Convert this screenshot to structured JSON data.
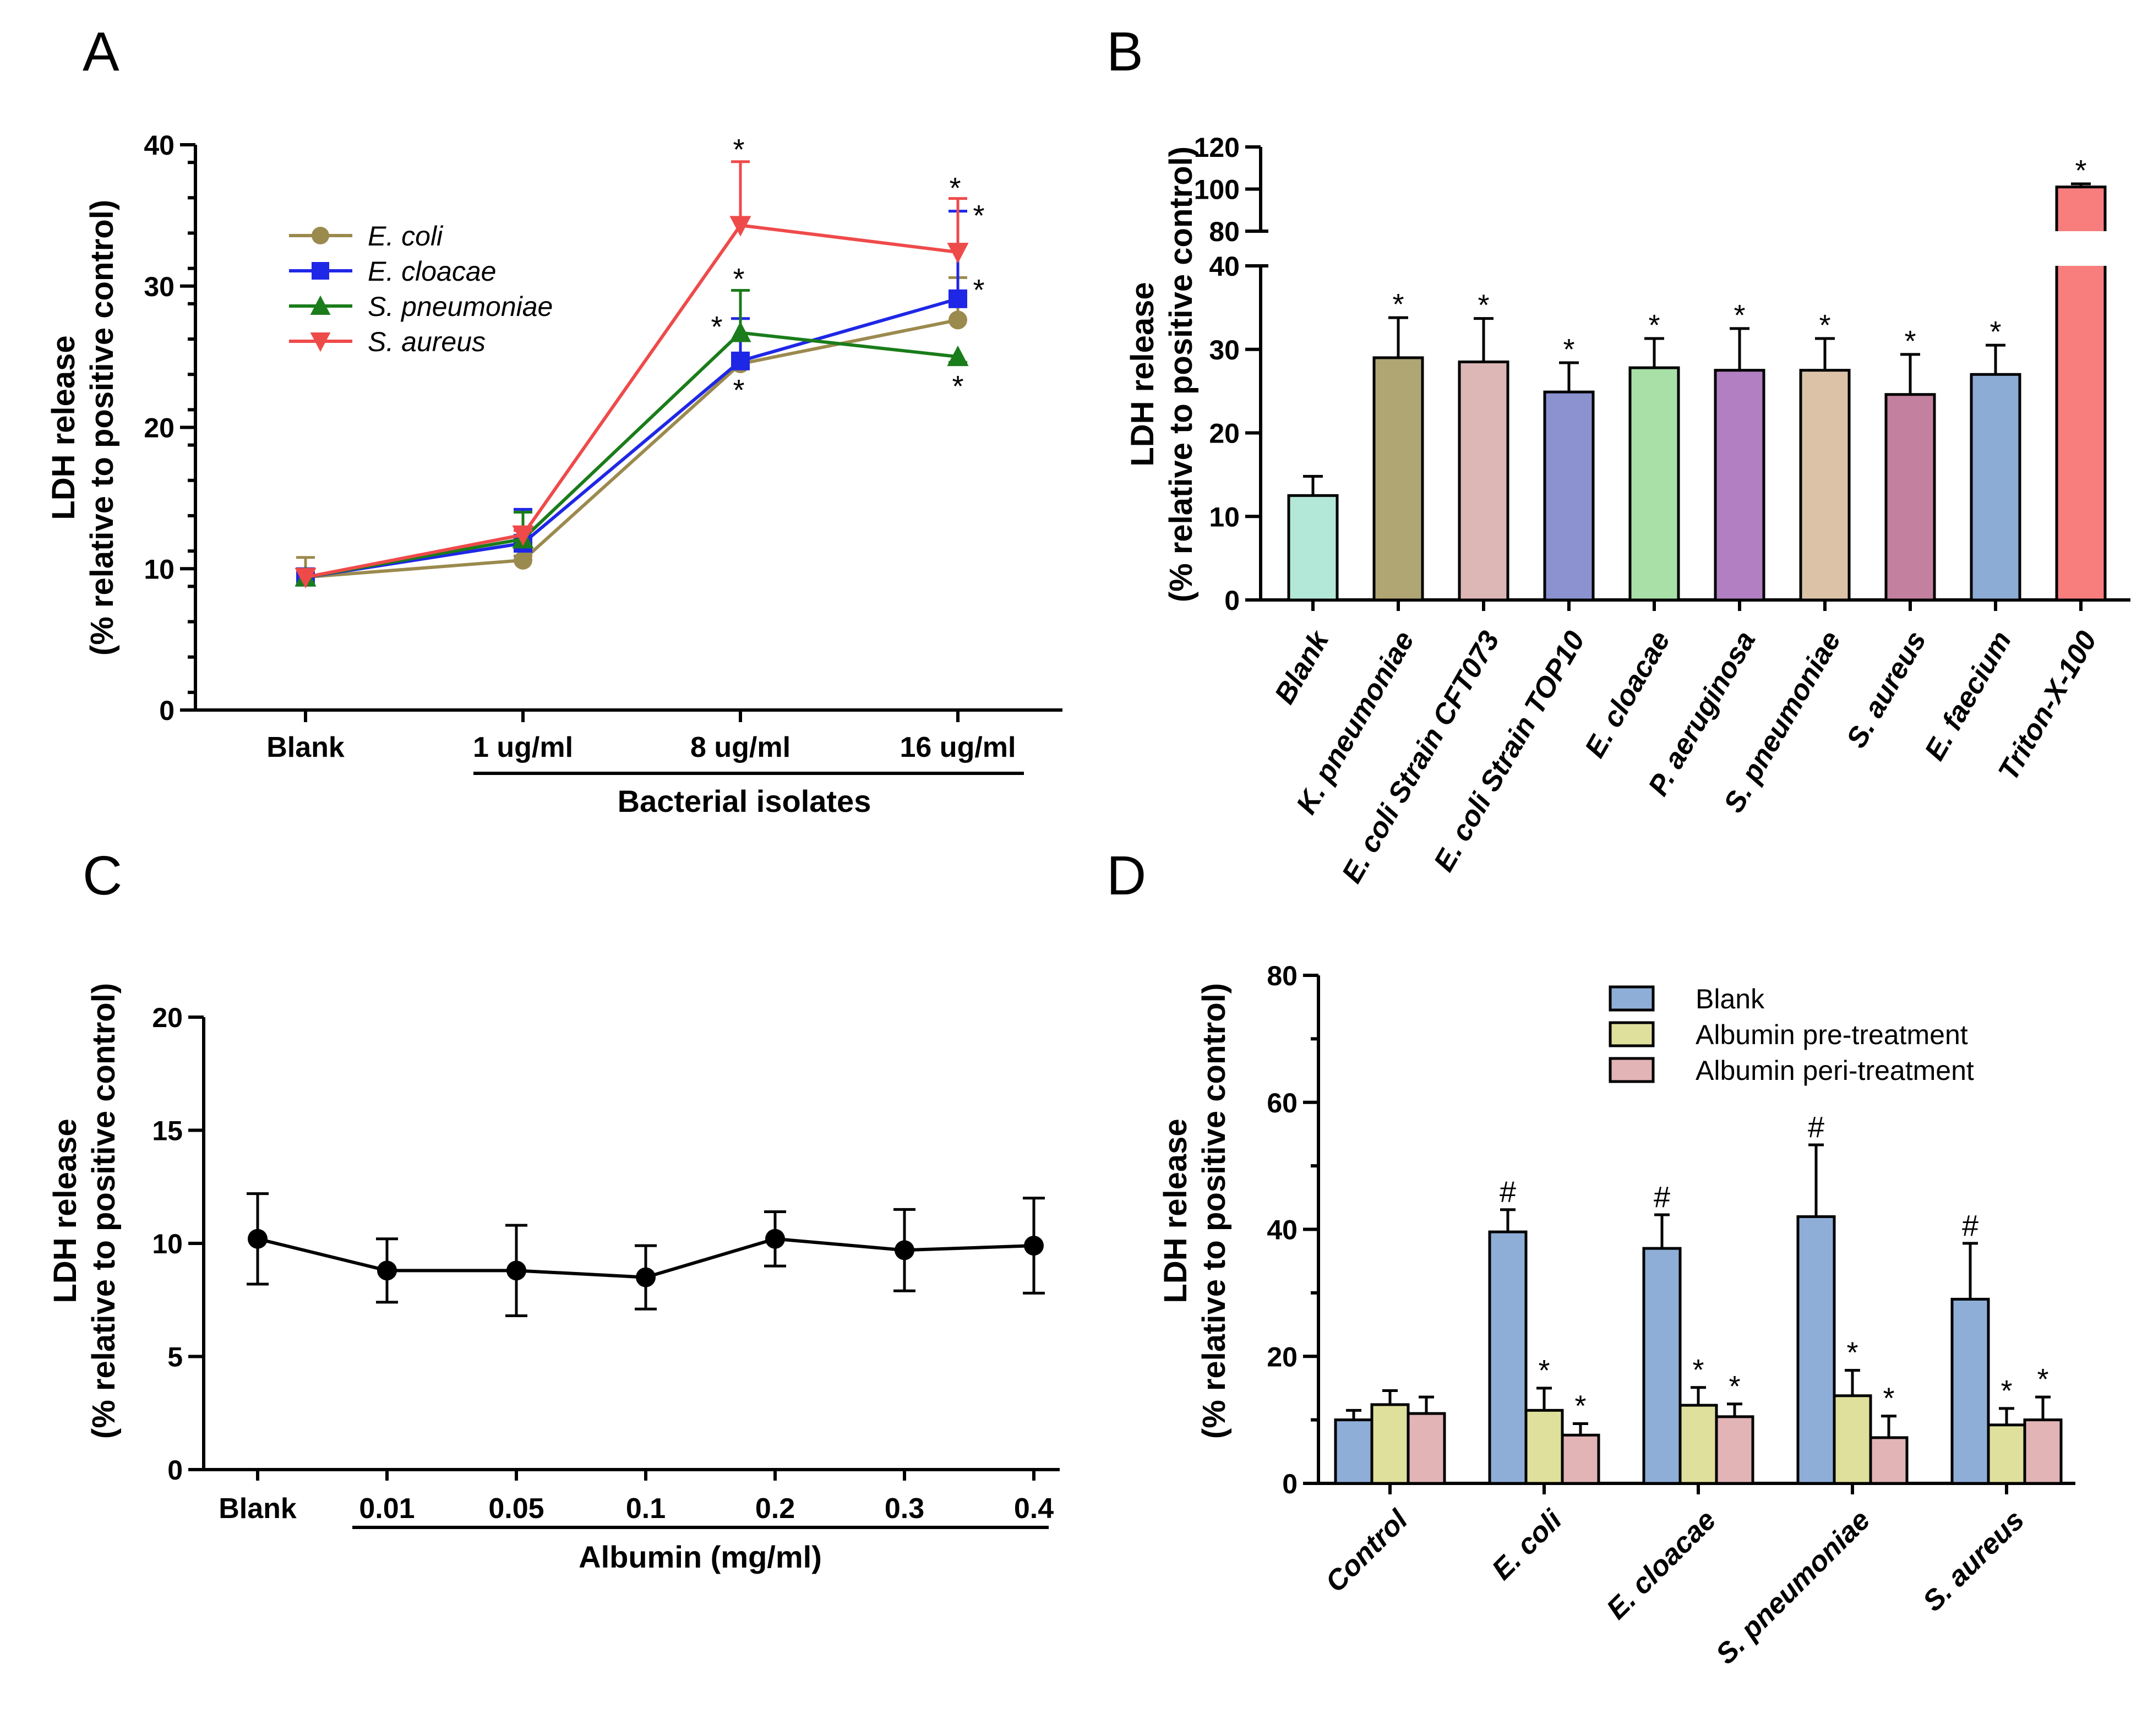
{
  "panels": {
    "A": "A",
    "B": "B",
    "C": "C",
    "D": "D"
  },
  "chart_data": [
    {
      "id": "A",
      "type": "line",
      "ylabel_line1": "LDH release",
      "ylabel_line2": "(% relative to positive control)",
      "xlabel": "Bacterial isolates",
      "ylim": [
        0,
        40
      ],
      "yticks": [
        0,
        10,
        20,
        30,
        40
      ],
      "categories": [
        "Blank",
        "1 ug/ml",
        "8 ug/ml",
        "16 ug/ml"
      ],
      "series": [
        {
          "name": "E. coli",
          "color": "#9b8a4e",
          "marker": "circle",
          "values": [
            9.4,
            10.6,
            24.5,
            27.6
          ],
          "err": [
            1.4,
            0.3,
            0.5,
            3.0
          ]
        },
        {
          "name": "E. cloacae",
          "color": "#1f27e6",
          "marker": "square",
          "values": [
            9.4,
            11.8,
            24.7,
            29.1
          ],
          "err": [
            0.6,
            2.4,
            3.0,
            6.2
          ]
        },
        {
          "name": "S. pneumoniae",
          "color": "#1a7c1a",
          "marker": "triangle-up",
          "values": [
            9.4,
            12.1,
            26.7,
            25.0
          ],
          "err": [
            0.5,
            1.9,
            3.0,
            0.4
          ]
        },
        {
          "name": "S. aureus",
          "color": "#ef4a4a",
          "marker": "triangle-down",
          "values": [
            9.4,
            12.4,
            34.3,
            32.4
          ],
          "err": [
            0.5,
            0.3,
            4.5,
            3.8
          ]
        }
      ],
      "annotations": [
        "*",
        "*",
        "*",
        "*",
        "*",
        "*",
        "*",
        "*"
      ]
    },
    {
      "id": "B",
      "type": "bar",
      "ylabel_line1": "LDH release",
      "ylabel_line2": "(% relative to positive control)",
      "yticks_lower": [
        0,
        10,
        20,
        30,
        40
      ],
      "yticks_upper": [
        80,
        100,
        120
      ],
      "categories": [
        "Blank",
        "K. pneumoniae",
        "E. coli Strain CFT073",
        "E. coli Strain TOP10",
        "E. cloacae",
        "P. aeruginosa",
        "S. pneumoniae",
        "S. aureus",
        "E. faecium",
        "Triton-X-100"
      ],
      "values": [
        12.5,
        29.0,
        28.5,
        24.9,
        27.8,
        27.5,
        27.5,
        24.6,
        27.0,
        101.0
      ],
      "err": [
        2.3,
        4.8,
        5.2,
        3.5,
        3.5,
        5.0,
        3.8,
        4.8,
        3.5,
        1.5
      ],
      "colors": [
        "#b3e8d8",
        "#b0a673",
        "#ddb6b6",
        "#8b92cf",
        "#a8e0a8",
        "#b27fc2",
        "#dcc3a8",
        "#c3809f",
        "#8cabd5",
        "#f87d7d"
      ],
      "significance": [
        "",
        "*",
        "*",
        "*",
        "*",
        "*",
        "*",
        "*",
        "*",
        "*"
      ]
    },
    {
      "id": "C",
      "type": "line",
      "ylabel_line1": "LDH release",
      "ylabel_line2": "(% relative to positive control)",
      "xlabel": "Albumin (mg/ml)",
      "ylim": [
        0,
        20
      ],
      "yticks": [
        0,
        5,
        10,
        15,
        20
      ],
      "categories": [
        "Blank",
        "0.01",
        "0.05",
        "0.1",
        "0.2",
        "0.3",
        "0.4"
      ],
      "values": [
        10.2,
        8.8,
        8.8,
        8.5,
        10.2,
        9.7,
        9.9
      ],
      "err": [
        2.0,
        1.4,
        2.0,
        1.4,
        1.2,
        1.8,
        2.1
      ]
    },
    {
      "id": "D",
      "type": "bar",
      "ylabel_line1": "LDH release",
      "ylabel_line2": "(% relative to positive control)",
      "ylim": [
        0,
        80
      ],
      "yticks": [
        0,
        20,
        40,
        60,
        80
      ],
      "categories": [
        "Control",
        "E. coli",
        "E. cloacae",
        "S. pneumoniae",
        "S. aureus"
      ],
      "series": [
        {
          "name": "Blank",
          "color": "#8eaed8",
          "values": [
            10.0,
            39.6,
            37.0,
            42.0,
            29.0
          ],
          "err": [
            1.5,
            3.5,
            5.3,
            11.3,
            8.8
          ],
          "marks": [
            "",
            "#",
            "#",
            "#",
            "#"
          ]
        },
        {
          "name": "Albumin pre-treatment",
          "color": "#dfe09c",
          "values": [
            12.4,
            11.5,
            12.3,
            13.8,
            9.2
          ],
          "err": [
            2.2,
            3.5,
            2.8,
            4.0,
            2.6
          ],
          "marks": [
            "",
            "*",
            "*",
            "*",
            "*"
          ]
        },
        {
          "name": "Albumin peri-treatment",
          "color": "#e2b4b6",
          "values": [
            11.0,
            7.6,
            10.5,
            7.2,
            10.0
          ],
          "err": [
            2.6,
            1.8,
            2.0,
            3.4,
            3.6
          ],
          "marks": [
            "",
            "*",
            "*",
            "*",
            "*"
          ]
        }
      ]
    }
  ]
}
